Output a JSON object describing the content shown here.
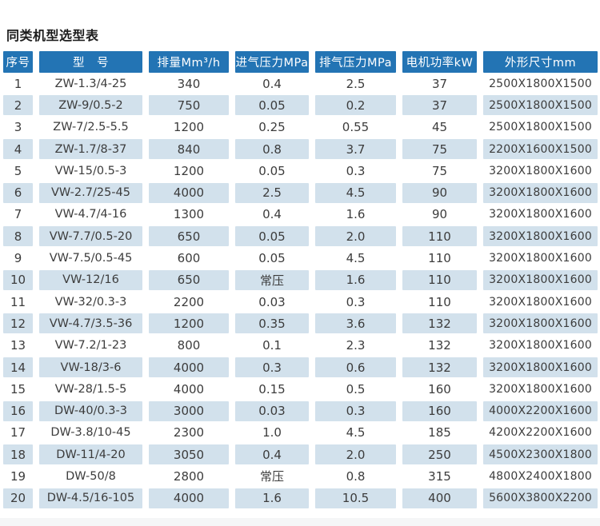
{
  "page": {
    "title": "同类机型选型表"
  },
  "colors": {
    "header_bg": "#2374b4",
    "stripe_bg": "#d2e1ec",
    "header_text": "#ffffff",
    "body_text": "#3c3c3c"
  },
  "table": {
    "headers": [
      "序号",
      "型　号",
      "排量Mm³/h",
      "进气压力MPa",
      "排气压力MPa",
      "电机功率kW",
      "外形尺寸mm"
    ],
    "rows": [
      {
        "seq": "1",
        "model": "ZW-1.3/4-25",
        "displacement": "340",
        "intake": "0.4",
        "exhaust": "2.5",
        "power": "37",
        "dimensions": "2500X1800X1500"
      },
      {
        "seq": "2",
        "model": "ZW-9/0.5-2",
        "displacement": "750",
        "intake": "0.05",
        "exhaust": "0.2",
        "power": "37",
        "dimensions": "2500X1800X1500"
      },
      {
        "seq": "3",
        "model": "ZW-7/2.5-5.5",
        "displacement": "1200",
        "intake": "0.25",
        "exhaust": "0.55",
        "power": "45",
        "dimensions": "2500X1800X1500"
      },
      {
        "seq": "4",
        "model": "ZW-1.7/8-37",
        "displacement": "840",
        "intake": "0.8",
        "exhaust": "3.7",
        "power": "75",
        "dimensions": "2200X1600X1500"
      },
      {
        "seq": "5",
        "model": "VW-15/0.5-3",
        "displacement": "1200",
        "intake": "0.05",
        "exhaust": "0.3",
        "power": "75",
        "dimensions": "3200X1800X1600"
      },
      {
        "seq": "6",
        "model": "VW-2.7/25-45",
        "displacement": "4000",
        "intake": "2.5",
        "exhaust": "4.5",
        "power": "90",
        "dimensions": "3200X1800X1600"
      },
      {
        "seq": "7",
        "model": "VW-4.7/4-16",
        "displacement": "1300",
        "intake": "0.4",
        "exhaust": "1.6",
        "power": "90",
        "dimensions": "3200X1800X1600"
      },
      {
        "seq": "8",
        "model": "VW-7.7/0.5-20",
        "displacement": "650",
        "intake": "0.05",
        "exhaust": "2.0",
        "power": "110",
        "dimensions": "3200X1800X1600"
      },
      {
        "seq": "9",
        "model": "VW-7.5/0.5-45",
        "displacement": "600",
        "intake": "0.05",
        "exhaust": "4.5",
        "power": "110",
        "dimensions": "3200X1800X1600"
      },
      {
        "seq": "10",
        "model": "VW-12/16",
        "displacement": "650",
        "intake": "常压",
        "exhaust": "1.6",
        "power": "110",
        "dimensions": "3200X1800X1600"
      },
      {
        "seq": "11",
        "model": "VW-32/0.3-3",
        "displacement": "2200",
        "intake": "0.03",
        "exhaust": "0.3",
        "power": "110",
        "dimensions": "3200X1800X1600"
      },
      {
        "seq": "12",
        "model": "VW-4.7/3.5-36",
        "displacement": "1200",
        "intake": "0.35",
        "exhaust": "3.6",
        "power": "132",
        "dimensions": "3200X1800X1600"
      },
      {
        "seq": "13",
        "model": "VW-7.2/1-23",
        "displacement": "800",
        "intake": "0.1",
        "exhaust": "2.3",
        "power": "132",
        "dimensions": "3200X1800X1600"
      },
      {
        "seq": "14",
        "model": "VW-18/3-6",
        "displacement": "4000",
        "intake": "0.3",
        "exhaust": "0.6",
        "power": "132",
        "dimensions": "3200X1800X1600"
      },
      {
        "seq": "15",
        "model": "VW-28/1.5-5",
        "displacement": "4000",
        "intake": "0.15",
        "exhaust": "0.5",
        "power": "160",
        "dimensions": "3200X1800X1600"
      },
      {
        "seq": "16",
        "model": "DW-40/0.3-3",
        "displacement": "3000",
        "intake": "0.03",
        "exhaust": "0.3",
        "power": "160",
        "dimensions": "4000X2200X1600"
      },
      {
        "seq": "17",
        "model": "DW-3.8/10-45",
        "displacement": "2300",
        "intake": "1.0",
        "exhaust": "4.5",
        "power": "185",
        "dimensions": "4200X2200X1600"
      },
      {
        "seq": "18",
        "model": "DW-11/4-20",
        "displacement": "3050",
        "intake": "0.4",
        "exhaust": "2.0",
        "power": "250",
        "dimensions": "4500X2300X1800"
      },
      {
        "seq": "19",
        "model": "DW-50/8",
        "displacement": "2800",
        "intake": "常压",
        "exhaust": "0.8",
        "power": "315",
        "dimensions": "4800X2400X1800"
      },
      {
        "seq": "20",
        "model": "DW-4.5/16-105",
        "displacement": "4000",
        "intake": "1.6",
        "exhaust": "10.5",
        "power": "400",
        "dimensions": "5600X3800X2200"
      }
    ]
  }
}
